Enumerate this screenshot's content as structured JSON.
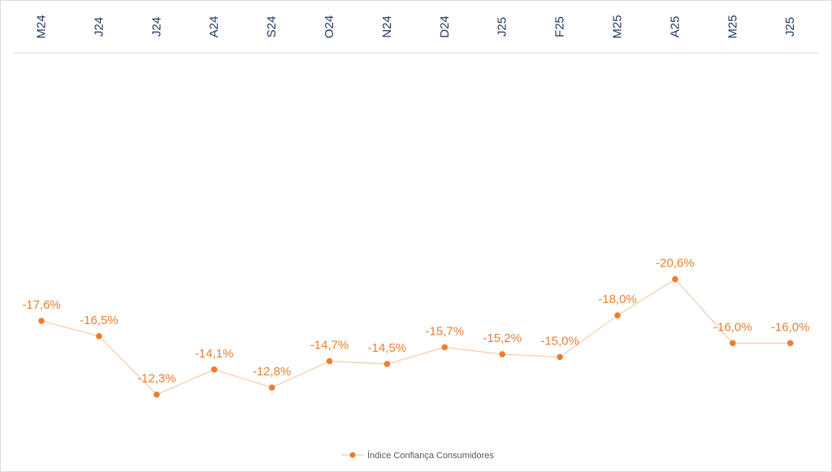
{
  "chart_data": {
    "type": "line",
    "categories": [
      "M24",
      "J24",
      "J24",
      "A24",
      "S24",
      "O24",
      "N24",
      "D24",
      "J25",
      "F25",
      "M25",
      "A25",
      "M25",
      "J25"
    ],
    "series": [
      {
        "name": "Índice Confiança Consumidores",
        "values": [
          -17.6,
          -16.5,
          -12.3,
          -14.1,
          -12.8,
          -14.7,
          -14.5,
          -15.7,
          -15.2,
          -15.0,
          -18.0,
          -20.6,
          -16.0,
          -16.0
        ],
        "labels": [
          "-17,6%",
          "-16,5%",
          "-12,3%",
          "-14,1%",
          "-12,8%",
          "-14,7%",
          "-14,5%",
          "-15,7%",
          "-15,2%",
          "-15,0%",
          "-18,0%",
          "-20,6%",
          "-16,0%",
          "-16,0%"
        ],
        "color": "#ed7d31"
      }
    ],
    "title": "",
    "xlabel": "",
    "ylabel": "",
    "x_axis_position": "top",
    "legend": "bottom",
    "grid": false,
    "ylim": [
      -30,
      0
    ]
  },
  "colors": {
    "series_line": "#f8cbad",
    "series_marker": "#ed7d31",
    "axis_text": "#1f3864",
    "axis_line": "#d9d9d9",
    "legend_text": "#595959"
  }
}
